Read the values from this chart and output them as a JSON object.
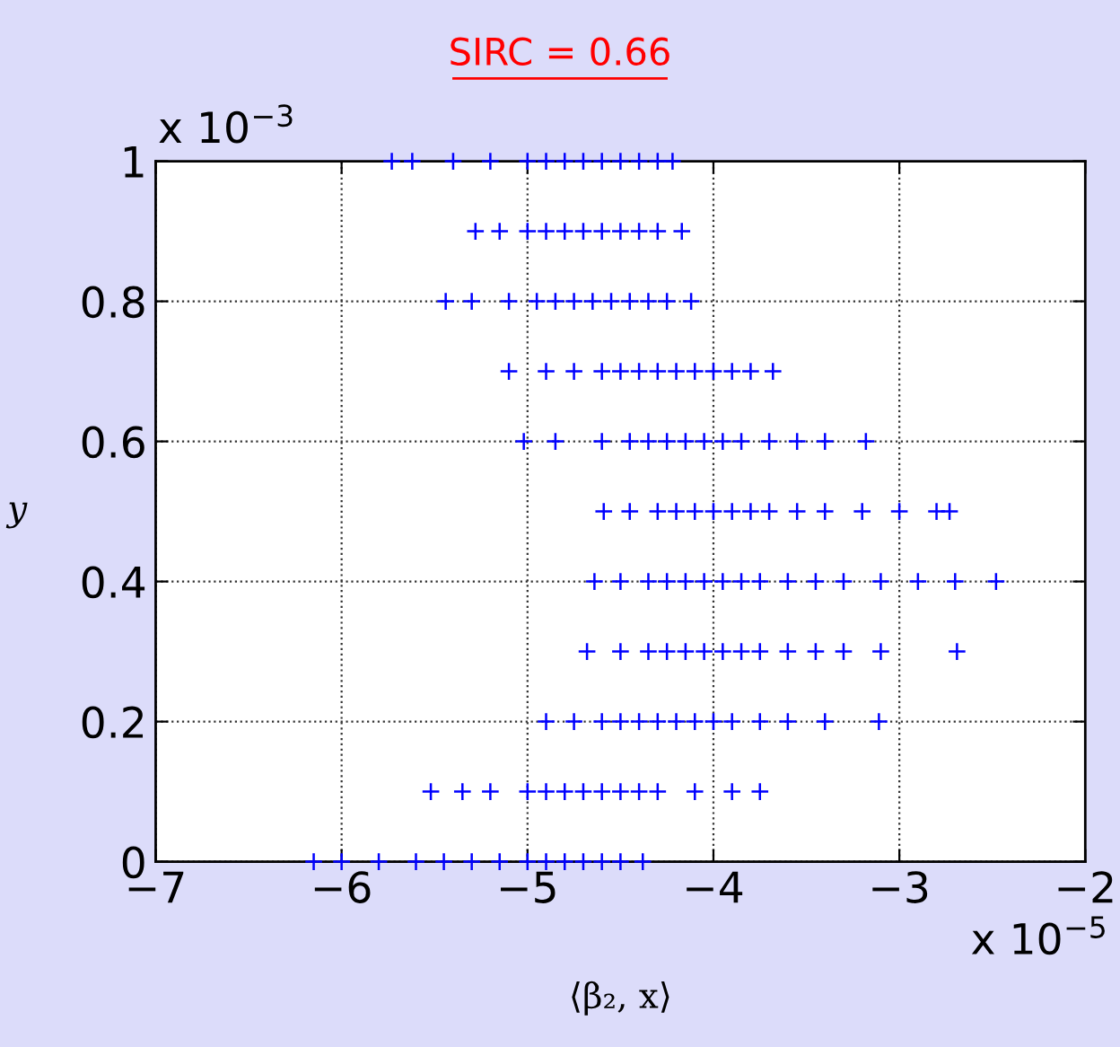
{
  "chart_data": {
    "type": "scatter",
    "title": "SIRC = 0.66",
    "xlabel": "⟨β₂, x⟩",
    "ylabel": "y",
    "annotations": [
      "x 10$^{−3}$",
      "x 10$^{−5}$"
    ],
    "xlim": [
      -7,
      -2
    ],
    "ylim": [
      0,
      1
    ],
    "xticks": [
      {
        "value": -7,
        "label": "−7"
      },
      {
        "value": -6,
        "label": "−6"
      },
      {
        "value": -5,
        "label": "−5"
      },
      {
        "value": -4,
        "label": "−4"
      },
      {
        "value": -3,
        "label": "−3"
      },
      {
        "value": -2,
        "label": "−2"
      }
    ],
    "yticks": [
      0,
      0.2,
      0.4,
      0.6,
      0.8,
      1
    ],
    "grid": true,
    "marker": "cross",
    "series": [
      {
        "color": "#0000ff",
        "x": [
          -5.73,
          -5.62,
          -5.4,
          -5.2,
          -5.0,
          -4.9,
          -4.8,
          -4.7,
          -4.6,
          -4.5,
          -4.4,
          -4.3,
          -4.22,
          -5.28,
          -5.15,
          -5.0,
          -4.9,
          -4.8,
          -4.7,
          -4.6,
          -4.5,
          -4.4,
          -4.3,
          -4.17,
          -5.44,
          -5.3,
          -5.1,
          -4.95,
          -4.85,
          -4.75,
          -4.65,
          -4.55,
          -4.45,
          -4.35,
          -4.25,
          -4.12,
          -5.1,
          -4.9,
          -4.75,
          -4.6,
          -4.5,
          -4.4,
          -4.3,
          -4.2,
          -4.1,
          -4.0,
          -3.9,
          -3.8,
          -3.68,
          -5.02,
          -4.85,
          -4.6,
          -4.45,
          -4.35,
          -4.25,
          -4.15,
          -4.05,
          -3.95,
          -3.85,
          -3.7,
          -3.55,
          -3.4,
          -3.18,
          -4.59,
          -4.45,
          -4.3,
          -4.2,
          -4.1,
          -4.0,
          -3.9,
          -3.8,
          -3.7,
          -3.55,
          -3.4,
          -3.2,
          -3.0,
          -2.8,
          -2.73,
          -4.64,
          -4.5,
          -4.35,
          -4.25,
          -4.15,
          -4.05,
          -3.95,
          -3.85,
          -3.75,
          -3.6,
          -3.45,
          -3.3,
          -3.1,
          -2.9,
          -2.7,
          -2.48,
          -4.68,
          -4.5,
          -4.35,
          -4.25,
          -4.15,
          -4.05,
          -3.95,
          -3.85,
          -3.75,
          -3.6,
          -3.45,
          -3.3,
          -3.1,
          -2.69,
          -4.9,
          -4.75,
          -4.6,
          -4.5,
          -4.4,
          -4.3,
          -4.2,
          -4.1,
          -4.0,
          -3.9,
          -3.75,
          -3.6,
          -3.4,
          -3.11,
          -5.52,
          -5.35,
          -5.2,
          -5.0,
          -4.9,
          -4.8,
          -4.7,
          -4.6,
          -4.5,
          -4.4,
          -4.3,
          -4.1,
          -3.9,
          -3.75,
          -6.15,
          -6.0,
          -5.8,
          -5.6,
          -5.45,
          -5.3,
          -5.15,
          -5.0,
          -4.9,
          -4.8,
          -4.7,
          -4.6,
          -4.5,
          -4.38
        ],
        "values": [
          1,
          1,
          1,
          1,
          1,
          1,
          1,
          1,
          1,
          1,
          1,
          1,
          1,
          0.9,
          0.9,
          0.9,
          0.9,
          0.9,
          0.9,
          0.9,
          0.9,
          0.9,
          0.9,
          0.9,
          0.8,
          0.8,
          0.8,
          0.8,
          0.8,
          0.8,
          0.8,
          0.8,
          0.8,
          0.8,
          0.8,
          0.8,
          0.7,
          0.7,
          0.7,
          0.7,
          0.7,
          0.7,
          0.7,
          0.7,
          0.7,
          0.7,
          0.7,
          0.7,
          0.7,
          0.6,
          0.6,
          0.6,
          0.6,
          0.6,
          0.6,
          0.6,
          0.6,
          0.6,
          0.6,
          0.6,
          0.6,
          0.6,
          0.6,
          0.5,
          0.5,
          0.5,
          0.5,
          0.5,
          0.5,
          0.5,
          0.5,
          0.5,
          0.5,
          0.5,
          0.5,
          0.5,
          0.5,
          0.5,
          0.4,
          0.4,
          0.4,
          0.4,
          0.4,
          0.4,
          0.4,
          0.4,
          0.4,
          0.4,
          0.4,
          0.4,
          0.4,
          0.4,
          0.4,
          0.4,
          0.3,
          0.3,
          0.3,
          0.3,
          0.3,
          0.3,
          0.3,
          0.3,
          0.3,
          0.3,
          0.3,
          0.3,
          0.3,
          0.3,
          0.2,
          0.2,
          0.2,
          0.2,
          0.2,
          0.2,
          0.2,
          0.2,
          0.2,
          0.2,
          0.2,
          0.2,
          0.2,
          0.2,
          0.1,
          0.1,
          0.1,
          0.1,
          0.1,
          0.1,
          0.1,
          0.1,
          0.1,
          0.1,
          0.1,
          0.1,
          0.1,
          0.1,
          0,
          0,
          0,
          0,
          0,
          0,
          0,
          0,
          0,
          0,
          0,
          0,
          0,
          0
        ]
      }
    ]
  }
}
